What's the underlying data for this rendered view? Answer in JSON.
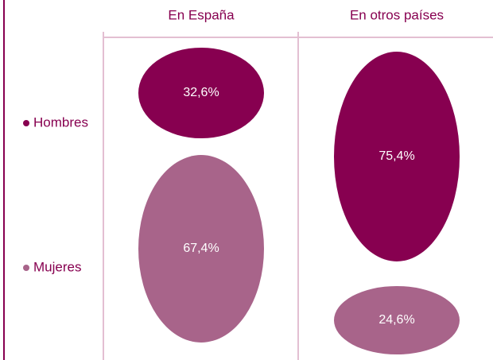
{
  "chart_data": {
    "type": "bubble",
    "categories": [
      "En España",
      "En otros países"
    ],
    "series": [
      {
        "name": "Hombres",
        "color": "#870050",
        "values": [
          32.6,
          75.4
        ],
        "value_labels": [
          "32,6%",
          "75,4%"
        ]
      },
      {
        "name": "Mujeres",
        "color": "#a8648a",
        "values": [
          67.4,
          24.6
        ],
        "value_labels": [
          "67,4%",
          "24,6%"
        ]
      }
    ]
  }
}
